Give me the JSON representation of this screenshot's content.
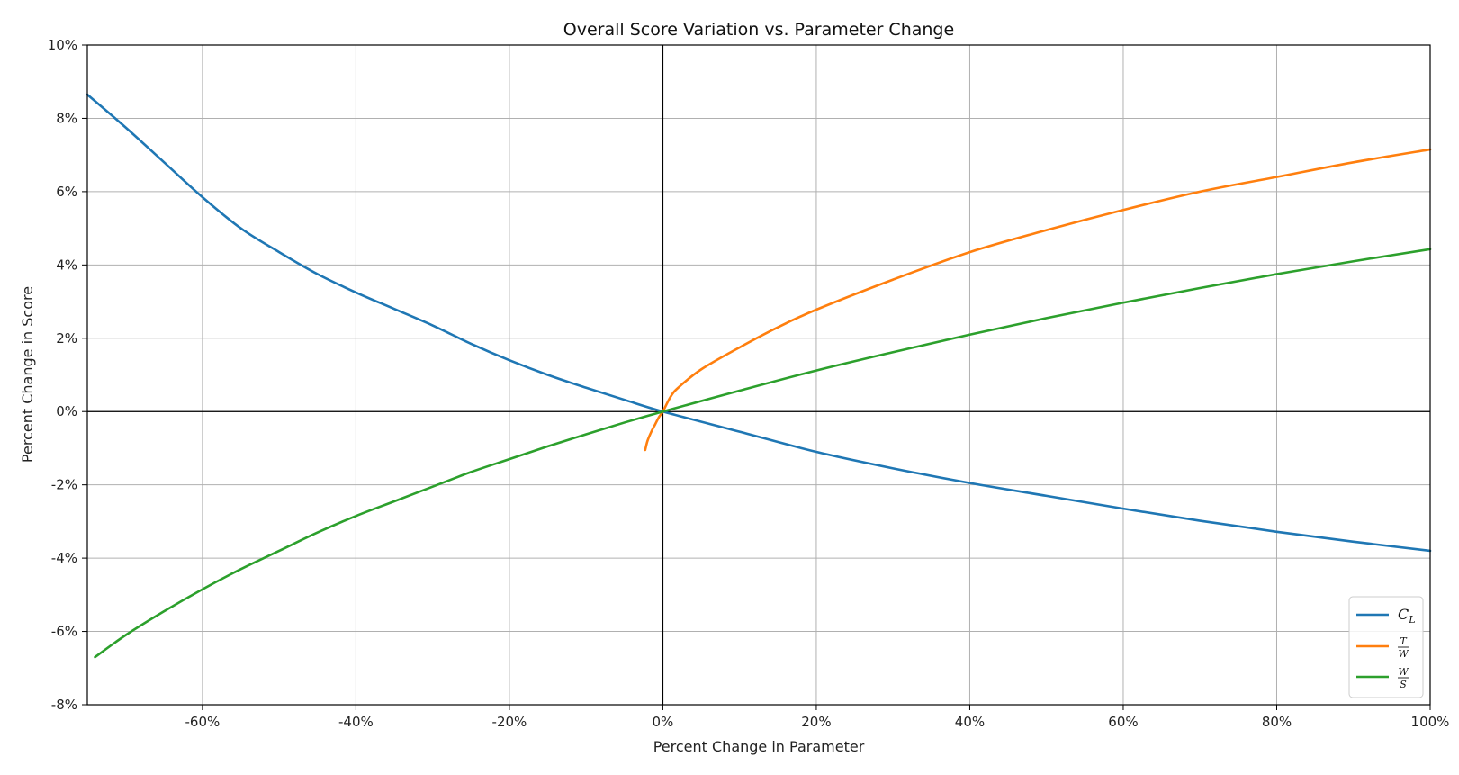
{
  "chart_data": {
    "type": "line",
    "title": "Overall Score Variation vs. Parameter Change",
    "xlabel": "Percent Change in Parameter",
    "ylabel": "Percent Change in Score",
    "xlim": [
      -75,
      100
    ],
    "ylim": [
      -8,
      10
    ],
    "x_ticks": [
      -60,
      -40,
      -20,
      0,
      20,
      40,
      60,
      80,
      100
    ],
    "x_tick_labels": [
      "-60%",
      "-40%",
      "-20%",
      "0%",
      "20%",
      "40%",
      "60%",
      "80%",
      "100%"
    ],
    "y_ticks": [
      -8,
      -6,
      -4,
      -2,
      0,
      2,
      4,
      6,
      8,
      10
    ],
    "y_tick_labels": [
      "-8%",
      "-6%",
      "-4%",
      "-2%",
      "0%",
      "2%",
      "4%",
      "6%",
      "8%",
      "10%"
    ],
    "grid": true,
    "legend_position": "bottom-right",
    "series": [
      {
        "name": "C_L",
        "legend_label": {
          "main": "C",
          "sub": "L"
        },
        "color": "#1f77b4",
        "x": [
          -75,
          -70,
          -65,
          -60,
          -55,
          -50,
          -45,
          -40,
          -35,
          -30,
          -25,
          -20,
          -15,
          -10,
          -5,
          0,
          10,
          20,
          30,
          40,
          50,
          60,
          70,
          80,
          90,
          100
        ],
        "y": [
          8.65,
          7.75,
          6.8,
          5.85,
          5.0,
          4.35,
          3.75,
          3.25,
          2.8,
          2.35,
          1.85,
          1.4,
          1.0,
          0.65,
          0.32,
          0,
          -0.55,
          -1.1,
          -1.55,
          -1.95,
          -2.3,
          -2.65,
          -2.98,
          -3.28,
          -3.55,
          -3.8
        ]
      },
      {
        "name": "T/W",
        "legend_label": {
          "num": "T",
          "den": "W"
        },
        "color": "#ff7f0e",
        "x": [
          -2.3,
          -2,
          -1.5,
          -1,
          -0.5,
          0,
          1,
          2,
          5,
          10,
          15,
          20,
          30,
          40,
          50,
          60,
          70,
          80,
          90,
          100
        ],
        "y": [
          -1.05,
          -0.8,
          -0.55,
          -0.35,
          -0.15,
          0,
          0.4,
          0.65,
          1.15,
          1.75,
          2.3,
          2.78,
          3.6,
          4.35,
          4.95,
          5.5,
          6.0,
          6.4,
          6.8,
          7.15
        ]
      },
      {
        "name": "W/S",
        "legend_label": {
          "num": "W",
          "den": "S"
        },
        "color": "#2ca02c",
        "x": [
          -74,
          -70,
          -65,
          -60,
          -55,
          -50,
          -45,
          -40,
          -35,
          -30,
          -25,
          -20,
          -15,
          -10,
          -5,
          0,
          10,
          20,
          30,
          40,
          50,
          60,
          70,
          80,
          90,
          100
        ],
        "y": [
          -6.7,
          -6.1,
          -5.45,
          -4.85,
          -4.3,
          -3.8,
          -3.3,
          -2.85,
          -2.45,
          -2.05,
          -1.65,
          -1.3,
          -0.95,
          -0.62,
          -0.3,
          0,
          0.57,
          1.12,
          1.62,
          2.1,
          2.55,
          2.97,
          3.37,
          3.75,
          4.1,
          4.43
        ]
      }
    ]
  }
}
